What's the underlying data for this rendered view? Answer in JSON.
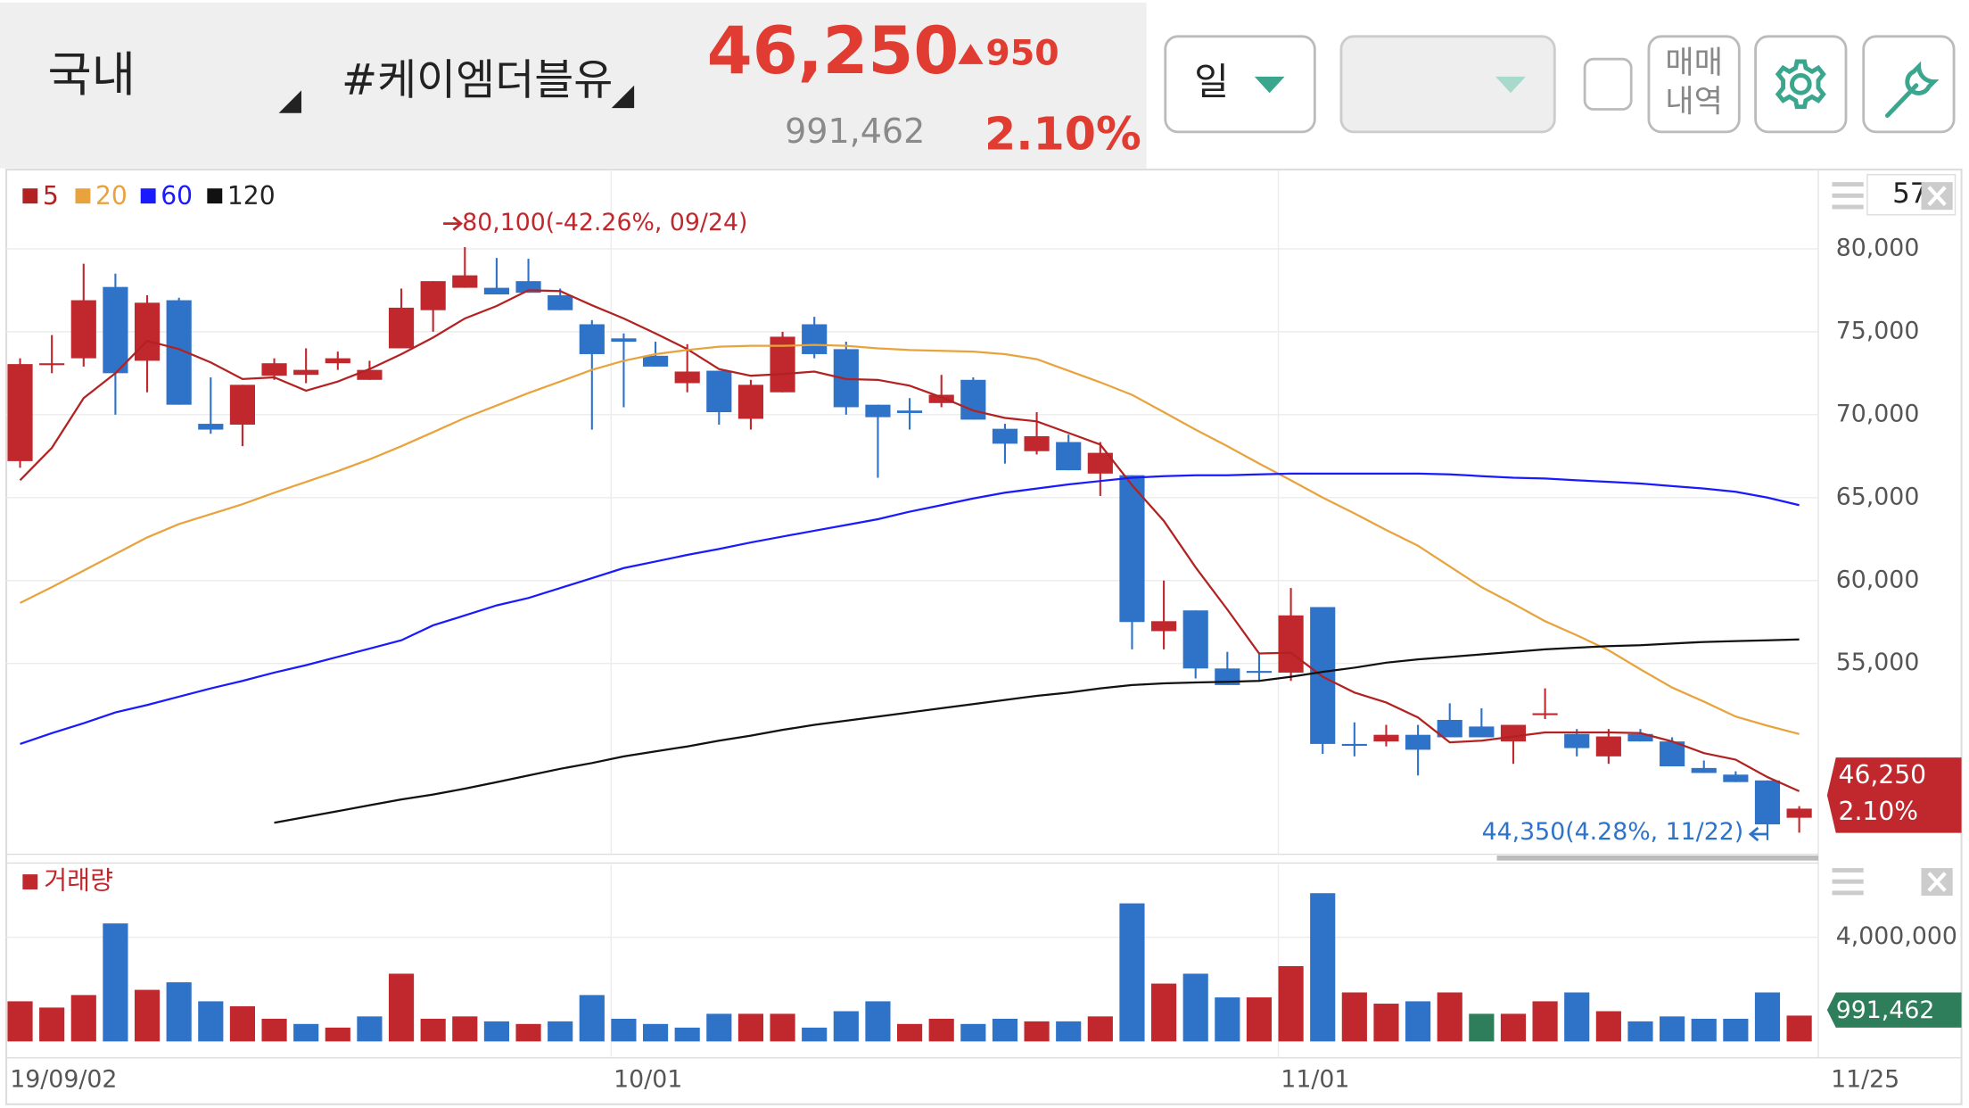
{
  "header": {
    "market": "국내",
    "stock": "#케이엠더블유",
    "price": "46,250",
    "change": "950",
    "volume": "991,462",
    "change_pct": "2.10%",
    "period": "일",
    "trade_history": [
      "매매",
      "내역"
    ],
    "count": "57"
  },
  "chart_data": [
    {
      "type": "candlestick",
      "categories": [
        "19/09/02",
        null,
        null,
        null,
        null,
        null,
        null,
        null,
        null,
        null,
        null,
        null,
        null,
        null,
        null,
        null,
        null,
        null,
        null,
        "10/01",
        null,
        null,
        null,
        null,
        null,
        null,
        null,
        null,
        null,
        null,
        null,
        null,
        null,
        null,
        null,
        null,
        null,
        null,
        null,
        null,
        "11/01",
        null,
        null,
        null,
        null,
        null,
        null,
        null,
        null,
        null,
        null,
        null,
        null,
        null,
        null,
        null,
        "11/25"
      ],
      "open": [
        67200,
        73000,
        73400,
        77700,
        73250,
        76900,
        69450,
        69400,
        72350,
        72400,
        73100,
        72100,
        74000,
        76300,
        77650,
        77650,
        78050,
        77200,
        75450,
        74600,
        73550,
        71900,
        72650,
        69750,
        71350,
        75450,
        73950,
        70600,
        70250,
        70700,
        72100,
        69150,
        67800,
        68350,
        66450,
        66350,
        56950,
        58200,
        54700,
        54550,
        54450,
        58400,
        50150,
        50300,
        50700,
        51600,
        51200,
        50300,
        51900,
        50750,
        49400,
        50750,
        50300,
        48700,
        48300,
        47950,
        45700
      ],
      "high": [
        73400,
        74800,
        79100,
        78500,
        77200,
        77050,
        72250,
        71800,
        73400,
        74000,
        73800,
        73250,
        77600,
        78050,
        80100,
        79450,
        79400,
        77600,
        75700,
        74900,
        74400,
        74250,
        72650,
        72100,
        75000,
        75900,
        74400,
        70600,
        71000,
        72400,
        72250,
        69450,
        70150,
        68800,
        68350,
        66350,
        60000,
        58200,
        55700,
        55600,
        59550,
        58400,
        51450,
        51300,
        51300,
        52600,
        52300,
        51300,
        53500,
        51050,
        51050,
        51050,
        50550,
        49150,
        48500,
        47950,
        46400
      ],
      "low": [
        66800,
        72500,
        72900,
        70000,
        71350,
        70600,
        68850,
        68100,
        72100,
        71900,
        72700,
        72100,
        74000,
        75000,
        77650,
        77250,
        77350,
        76300,
        69100,
        70450,
        72900,
        71350,
        69400,
        69100,
        71350,
        73400,
        70000,
        66200,
        69100,
        70450,
        69700,
        67050,
        67600,
        66650,
        65100,
        55850,
        55850,
        54100,
        53700,
        53950,
        53950,
        49550,
        49400,
        50000,
        48250,
        50550,
        50550,
        48950,
        51650,
        49400,
        48950,
        50300,
        48800,
        48400,
        47850,
        44350,
        44800
      ],
      "close": [
        73050,
        73100,
        76900,
        72500,
        76750,
        70600,
        69100,
        71800,
        73100,
        72700,
        73400,
        72700,
        76450,
        78050,
        78400,
        77250,
        77350,
        76300,
        73650,
        74400,
        72900,
        72600,
        70150,
        71800,
        74700,
        73650,
        70450,
        69850,
        70100,
        71200,
        69700,
        68250,
        68700,
        66650,
        67700,
        57500,
        57550,
        54700,
        53700,
        54450,
        57900,
        50150,
        50100,
        50700,
        49800,
        50550,
        50550,
        51300,
        52000,
        49900,
        50600,
        50300,
        48800,
        48400,
        47850,
        45300,
        46250
      ],
      "up_color": "#c0282d",
      "down_color": "#2f73c9",
      "series": [
        {
          "name": "5",
          "color": "#b22222",
          "values": [
            66050,
            68000,
            71000,
            72500,
            74450,
            73950,
            73150,
            72150,
            72250,
            71450,
            72000,
            72750,
            73650,
            74650,
            75800,
            76550,
            77500,
            77450,
            76600,
            75800,
            74900,
            73950,
            72750,
            72350,
            72450,
            72600,
            72150,
            72100,
            71750,
            71050,
            70250,
            69800,
            69600,
            68900,
            68200,
            65750,
            63600,
            60800,
            58250,
            55600,
            55650,
            54200,
            53250,
            52650,
            51750,
            50250,
            50350,
            50600,
            50850,
            50850,
            50850,
            50800,
            50300,
            49600,
            49200,
            48150,
            47300
          ]
        },
        {
          "name": "20",
          "color": "#e8a33d",
          "values": [
            58650,
            59600,
            60600,
            61600,
            62600,
            63400,
            64000,
            64600,
            65300,
            65950,
            66600,
            67300,
            68100,
            68950,
            69800,
            70550,
            71300,
            72000,
            72700,
            73250,
            73650,
            73900,
            74100,
            74150,
            74150,
            74200,
            74150,
            74000,
            73900,
            73850,
            73800,
            73650,
            73350,
            72650,
            71950,
            71200,
            70150,
            69100,
            68100,
            67050,
            66050,
            65000,
            64050,
            63050,
            62100,
            60850,
            59600,
            58600,
            57550,
            56700,
            55800,
            54650,
            53550,
            52700,
            51800,
            51250,
            50750
          ]
        },
        {
          "name": "60",
          "color": "#1a1aff",
          "values": [
            50150,
            50800,
            51400,
            52050,
            52500,
            53000,
            53500,
            53950,
            54450,
            54900,
            55400,
            55900,
            56400,
            57300,
            57900,
            58500,
            58950,
            59550,
            60150,
            60750,
            61150,
            61550,
            61900,
            62300,
            62650,
            63000,
            63350,
            63700,
            64150,
            64550,
            64950,
            65300,
            65550,
            65800,
            66000,
            66200,
            66300,
            66350,
            66350,
            66400,
            66450,
            66450,
            66450,
            66450,
            66450,
            66400,
            66300,
            66200,
            66150,
            66050,
            65950,
            65850,
            65700,
            65550,
            65350,
            65000,
            64550
          ]
        },
        {
          "name": "120",
          "color": "#111111",
          "values": [
            null,
            null,
            null,
            null,
            null,
            null,
            null,
            null,
            45400,
            45750,
            46100,
            46450,
            46800,
            47100,
            47450,
            47850,
            48250,
            48650,
            49000,
            49400,
            49700,
            50000,
            50350,
            50650,
            51000,
            51300,
            51550,
            51800,
            52050,
            52300,
            52550,
            52800,
            53050,
            53250,
            53500,
            53700,
            53800,
            53850,
            53900,
            53950,
            54200,
            54500,
            54750,
            55050,
            55250,
            55400,
            55550,
            55700,
            55850,
            55950,
            56050,
            56100,
            56200,
            56300,
            56350,
            56400,
            56450
          ]
        }
      ],
      "ylim": [
        43500,
        84700
      ],
      "yticks": [
        {
          "value": 80000,
          "label": "80,000"
        },
        {
          "value": 75000,
          "label": "75,000"
        },
        {
          "value": 70000,
          "label": "70,000"
        },
        {
          "value": 65000,
          "label": "65,000"
        },
        {
          "value": 60000,
          "label": "60,000"
        },
        {
          "value": 55000,
          "label": "55,000"
        }
      ],
      "annotations": [
        "80,100(-42.26%, 09/24)",
        "44,350(4.28%, 11/22)"
      ],
      "grid": true
    },
    {
      "type": "bar",
      "series": [
        {
          "name": "거래량",
          "color": "#c0282d",
          "values": [
            1540000,
            1300000,
            1780000,
            4530000,
            1980000,
            2270000,
            1540000,
            1350000,
            870000,
            670000,
            530000,
            960000,
            2600000,
            870000,
            960000,
            770000,
            670000,
            770000,
            1780000,
            870000,
            670000,
            530000,
            1060000,
            1060000,
            1060000,
            530000,
            1160000,
            1540000,
            670000,
            870000,
            670000,
            870000,
            770000,
            770000,
            960000,
            5300000,
            2220000,
            2600000,
            1690000,
            1690000,
            2890000,
            5690000,
            1880000,
            1450000,
            1540000,
            1880000,
            1060000,
            1060000,
            1540000,
            1880000,
            1160000,
            770000,
            960000,
            870000,
            870000,
            1880000,
            991462
          ],
          "colors": [
            "#c0282d",
            "#c0282d",
            "#c0282d",
            "#2f73c9",
            "#c0282d",
            "#2f73c9",
            "#2f73c9",
            "#c0282d",
            "#c0282d",
            "#2f73c9",
            "#c0282d",
            "#2f73c9",
            "#c0282d",
            "#c0282d",
            "#c0282d",
            "#2f73c9",
            "#c0282d",
            "#2f73c9",
            "#2f73c9",
            "#2f73c9",
            "#2f73c9",
            "#2f73c9",
            "#2f73c9",
            "#c0282d",
            "#c0282d",
            "#2f73c9",
            "#2f73c9",
            "#2f73c9",
            "#c0282d",
            "#c0282d",
            "#2f73c9",
            "#2f73c9",
            "#c0282d",
            "#2f73c9",
            "#c0282d",
            "#2f73c9",
            "#c0282d",
            "#2f73c9",
            "#2f73c9",
            "#c0282d",
            "#c0282d",
            "#2f73c9",
            "#c0282d",
            "#c0282d",
            "#2f73c9",
            "#c0282d",
            "#2e7d5b",
            "#c0282d",
            "#c0282d",
            "#2f73c9",
            "#c0282d",
            "#2f73c9",
            "#2f73c9",
            "#2f73c9",
            "#2f73c9",
            "#2f73c9",
            "#c0282d"
          ]
        }
      ],
      "ylim": [
        0,
        6800000
      ],
      "yticks": [
        {
          "value": 4000000,
          "label": "4,000,000"
        }
      ],
      "grid": true
    }
  ]
}
